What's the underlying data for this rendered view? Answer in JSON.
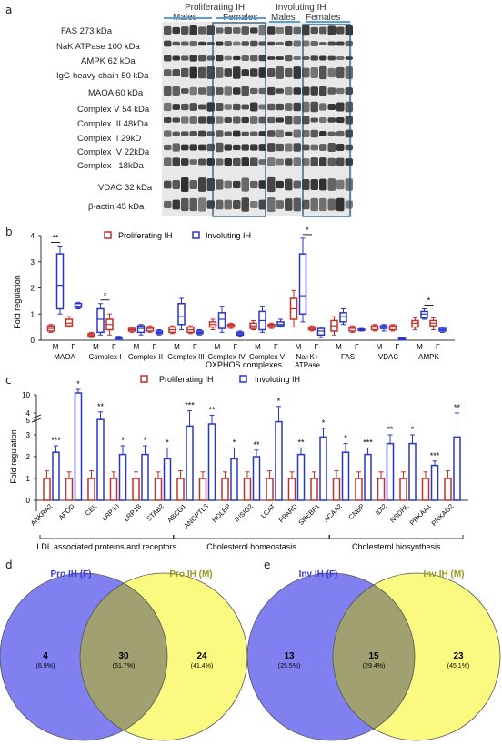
{
  "panel_labels": [
    "a",
    "b",
    "c",
    "d",
    "e"
  ],
  "western": {
    "groups": {
      "proliferating": "Proliferating IH",
      "males_p": "Males",
      "females_p": "Females",
      "involuting": "Involuting IH",
      "males_i": "Males",
      "females_i": "Females"
    },
    "bands": [
      "FAS 273 kDa",
      "NaK ATPase 100 kDa",
      "AMPK 62 kDa",
      "IgG heavy chain 50 kDa",
      "MAOA 60 kDa",
      "Complex V 54 kDa",
      "Complex III 48kDa",
      "Complex II 29kD",
      "Complex IV 22kDa",
      "Complex I 18kDa",
      "VDAC 32 kDa",
      "β-actin 45 kDa"
    ]
  },
  "chart_data": [
    {
      "panel": "b",
      "type": "box",
      "ylabel": "Fold regulation",
      "ylim": [
        0,
        4
      ],
      "yticks": [
        "0",
        "1",
        "2",
        "3",
        "4"
      ],
      "legend": [
        "Proliferating IH",
        "Involuting IH"
      ],
      "mf_labels": [
        "M",
        "F"
      ],
      "x_group_label": "OXPHOS complexes",
      "categories": [
        "MAOA",
        "Complex I",
        "Complex II",
        "Complex III",
        "Complex IV",
        "Complex V",
        "Na+K+ ATPase",
        "FAS",
        "VDAC",
        "AMPK"
      ],
      "category_labels": [
        "MAOA",
        "Complex I",
        "Complex II",
        "Complex III",
        "Complex IV",
        "Complex V",
        "Na+K+",
        "FAS",
        "VDAC",
        "AMPK"
      ],
      "category_sublabel": "ATPase",
      "series": [
        {
          "name": "Proliferating IH",
          "color": "#c0302b",
          "male": [
            [
              0.3,
              0.35,
              0.45,
              0.55,
              0.6
            ],
            [
              0.1,
              0.15,
              0.2,
              0.25,
              0.3
            ],
            [
              0.3,
              0.35,
              0.4,
              0.45,
              0.5
            ],
            [
              0.25,
              0.3,
              0.4,
              0.5,
              0.55
            ],
            [
              0.4,
              0.5,
              0.6,
              0.7,
              0.8
            ],
            [
              0.4,
              0.45,
              0.55,
              0.65,
              0.75
            ],
            [
              0.5,
              0.8,
              1.2,
              1.6,
              1.9
            ],
            [
              0.2,
              0.35,
              0.55,
              0.75,
              0.9
            ],
            [
              0.35,
              0.4,
              0.5,
              0.55,
              0.6
            ],
            [
              0.4,
              0.5,
              0.65,
              0.75,
              0.85
            ]
          ],
          "female": [
            [
              0.5,
              0.55,
              0.65,
              0.8,
              0.9
            ],
            [
              0.2,
              0.4,
              0.6,
              0.8,
              1.0
            ],
            [
              0.3,
              0.35,
              0.45,
              0.5,
              0.55
            ],
            [
              0.25,
              0.3,
              0.4,
              0.5,
              0.55
            ],
            [
              0.45,
              0.5,
              0.55,
              0.6,
              0.65
            ],
            [
              0.45,
              0.5,
              0.55,
              0.6,
              0.65
            ],
            [
              0.35,
              0.4,
              0.45,
              0.5,
              0.55
            ],
            [
              0.3,
              0.35,
              0.45,
              0.5,
              0.55
            ],
            [
              0.35,
              0.4,
              0.5,
              0.55,
              0.6
            ],
            [
              0.4,
              0.55,
              0.65,
              0.75,
              0.85
            ]
          ]
        },
        {
          "name": "Involuting IH",
          "color": "#2936c8",
          "male": [
            [
              1.0,
              1.2,
              2.1,
              3.3,
              3.6
            ],
            [
              0.2,
              0.3,
              0.8,
              1.2,
              1.4
            ],
            [
              0.2,
              0.3,
              0.45,
              0.55,
              0.6
            ],
            [
              0.4,
              0.6,
              0.9,
              1.4,
              1.6
            ],
            [
              0.3,
              0.45,
              0.8,
              1.05,
              1.3
            ],
            [
              0.3,
              0.4,
              0.75,
              1.1,
              1.3
            ],
            [
              0.7,
              1.0,
              1.7,
              3.3,
              3.9
            ],
            [
              0.6,
              0.7,
              0.9,
              1.05,
              1.2
            ],
            [
              0.35,
              0.45,
              0.5,
              0.55,
              0.6
            ],
            [
              0.8,
              0.85,
              1.0,
              1.1,
              1.2
            ]
          ],
          "female": [
            [
              1.2,
              1.25,
              1.3,
              1.4,
              1.45
            ],
            [
              0.0,
              0.05,
              0.08,
              0.12,
              0.15
            ],
            [
              0.2,
              0.25,
              0.3,
              0.35,
              0.4
            ],
            [
              0.2,
              0.25,
              0.3,
              0.35,
              0.4
            ],
            [
              0.15,
              0.2,
              0.25,
              0.3,
              0.35
            ],
            [
              0.5,
              0.55,
              0.6,
              0.7,
              0.8
            ],
            [
              0.1,
              0.2,
              0.35,
              0.45,
              0.5
            ],
            [
              0.35,
              0.38,
              0.4,
              0.42,
              0.45
            ],
            [
              0.0,
              0.02,
              0.05,
              0.08,
              0.1
            ],
            [
              0.3,
              0.35,
              0.4,
              0.45,
              0.5
            ]
          ]
        }
      ],
      "significance": [
        {
          "label": "**",
          "category": "MAOA"
        },
        {
          "label": "*",
          "category": "Complex I"
        },
        {
          "label": "*",
          "category": "Na+K+ ATPase"
        },
        {
          "label": "*",
          "category": "AMPK"
        }
      ]
    },
    {
      "panel": "c",
      "type": "bar",
      "ylabel": "Fold regulation",
      "yticks": [
        "0",
        "1",
        "2",
        "3",
        "4",
        "5",
        "10"
      ],
      "legend": [
        "Proliferating IH",
        "Involuting IH"
      ],
      "categories": [
        "ANKRA2",
        "APOD",
        "CEL",
        "LRP10",
        "LRP1B",
        "STAB2",
        "ABCG1",
        "ANGPTL3",
        "HDLBP",
        "INSIG2",
        "LCAT",
        "PPARD",
        "SREBF1",
        "ACAA2",
        "CNBP",
        "IDI2",
        "NSDHL",
        "PRKAA1",
        "PRKAG2"
      ],
      "series": [
        {
          "name": "Proliferating IH",
          "color": "#c0302b",
          "values": [
            1,
            1,
            1,
            1,
            1,
            1,
            1,
            1,
            1,
            1,
            1,
            1,
            1,
            1,
            1,
            1,
            1,
            1,
            1
          ],
          "err": [
            0.35,
            0.3,
            0.35,
            0.3,
            0.3,
            0.3,
            0.35,
            0.3,
            0.3,
            0.3,
            0.35,
            0.3,
            0.3,
            0.35,
            0.3,
            0.3,
            0.3,
            0.3,
            0.35
          ]
        },
        {
          "name": "Involuting IH",
          "color": "#2936c8",
          "values": [
            2.2,
            9.2,
            3.7,
            2.1,
            2.1,
            1.9,
            3.4,
            3.5,
            1.9,
            2.0,
            3.6,
            2.1,
            2.9,
            2.2,
            2.1,
            2.6,
            2.6,
            1.6,
            2.9
          ],
          "err": [
            0.3,
            0.4,
            0.35,
            0.4,
            0.4,
            0.5,
            0.7,
            0.4,
            0.5,
            0.3,
            0.7,
            0.3,
            0.4,
            0.4,
            0.3,
            0.4,
            0.4,
            0.2,
            1.1
          ]
        }
      ],
      "significance": [
        "***",
        "*",
        "**",
        "*",
        "*",
        "*",
        "***",
        "**",
        "*",
        "**",
        "*",
        "**",
        "*",
        "*",
        "***",
        "**",
        "*",
        "***",
        "**"
      ],
      "category_groups": [
        {
          "label": "LDL associated proteins and receptors",
          "from": 0,
          "to": 5
        },
        {
          "label": "Cholesterol homeostasis",
          "from": 6,
          "to": 12
        },
        {
          "label": "Cholesterol biosynthesis",
          "from": 13,
          "to": 18
        }
      ]
    }
  ],
  "venn_d": {
    "left_title": "Pro IH (F)",
    "right_title": "Pro IH (M)",
    "left_count": "4",
    "left_pct": "(6.9%)",
    "mid_count": "30",
    "mid_pct": "(51.7%)",
    "right_count": "24",
    "right_pct": "(41.4%)",
    "colors": {
      "left": "#8080f0",
      "right": "#fafa80",
      "overlap": "#a0a070"
    }
  },
  "venn_e": {
    "left_title": "Inv IH (F)",
    "right_title": "Inv IH (M)",
    "left_count": "13",
    "left_pct": "(25.5%)",
    "mid_count": "15",
    "mid_pct": "(29.4%)",
    "right_count": "23",
    "right_pct": "(45.1%)",
    "colors": {
      "left": "#8080f0",
      "right": "#fafa80",
      "overlap": "#a0a070"
    }
  }
}
